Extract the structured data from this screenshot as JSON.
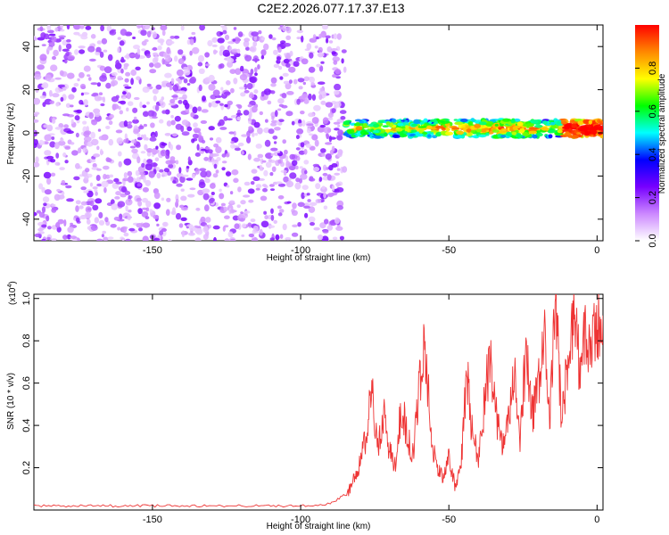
{
  "title": "C2E2.2026.077.17.37.E13",
  "chart_data": [
    {
      "type": "heatmap",
      "xlabel": "Height of straight line (km)",
      "ylabel": "Frequency (Hz)",
      "xlim": [
        -190,
        2
      ],
      "ylim": [
        -50,
        50
      ],
      "xticks": [
        -150,
        -100,
        -50,
        0
      ],
      "yticks": [
        -40,
        -20,
        0,
        20,
        40
      ],
      "colorbar": {
        "label": "Normalized spectral amplitude",
        "range": [
          0,
          1
        ],
        "ticks": [
          0.0,
          0.2,
          0.4,
          0.6,
          0.8
        ],
        "tick_labels": [
          "0.0",
          "0.2",
          "0.4",
          "0.6",
          "0.8"
        ],
        "colormap": [
          "#ffffff",
          "#cc88ff",
          "#7700ff",
          "#0000ff",
          "#00ffff",
          "#00ff00",
          "#ffff00",
          "#ff8800",
          "#ff0000"
        ]
      },
      "regions": [
        {
          "x_range": [
            -190,
            -85
          ],
          "frequency_range": [
            -50,
            50
          ],
          "amplitude_range": [
            0.05,
            0.25
          ],
          "pattern": "scattered noise"
        },
        {
          "x_range": [
            -85,
            2
          ],
          "frequency_center": 2,
          "frequency_width": 8,
          "amplitude_range": [
            0.3,
            1.0
          ],
          "pattern": "narrow band near 0 Hz"
        }
      ]
    },
    {
      "type": "line",
      "xlabel": "Height of straight line (km)",
      "ylabel": "SNR (10 * v/v)",
      "y_multiplier": "(x10",
      "y_multiplier_exp": "4",
      "xlim": [
        -190,
        2
      ],
      "ylim": [
        0,
        1.02
      ],
      "xticks": [
        -150,
        -100,
        -50,
        0
      ],
      "yticks": [
        0.2,
        0.4,
        0.6,
        0.8,
        1.0
      ],
      "color": "#ee3333",
      "series": [
        {
          "x": [
            -190,
            -180,
            -170,
            -160,
            -150,
            -140,
            -130,
            -120,
            -110,
            -100,
            -90,
            -84,
            -82,
            -80,
            -78,
            -76,
            -74,
            -72,
            -70,
            -68,
            -66,
            -64,
            -62,
            -60,
            -58,
            -56,
            -54,
            -52,
            -50,
            -48,
            -46,
            -44,
            -42,
            -40,
            -38,
            -36,
            -34,
            -32,
            -30,
            -28,
            -26,
            -24,
            -22,
            -20,
            -18,
            -16,
            -14,
            -12,
            -10,
            -8,
            -6,
            -4,
            -2,
            0,
            2
          ],
          "y": [
            0.02,
            0.02,
            0.02,
            0.02,
            0.02,
            0.02,
            0.02,
            0.02,
            0.02,
            0.02,
            0.03,
            0.08,
            0.15,
            0.22,
            0.35,
            0.55,
            0.3,
            0.45,
            0.28,
            0.2,
            0.5,
            0.35,
            0.25,
            0.6,
            0.8,
            0.35,
            0.2,
            0.15,
            0.25,
            0.12,
            0.18,
            0.65,
            0.35,
            0.25,
            0.5,
            0.75,
            0.45,
            0.3,
            0.4,
            0.65,
            0.3,
            0.75,
            0.45,
            0.55,
            0.85,
            0.4,
            1.0,
            0.45,
            0.65,
            0.95,
            0.7,
            0.8,
            0.75,
            0.85,
            0.92
          ]
        }
      ]
    }
  ]
}
